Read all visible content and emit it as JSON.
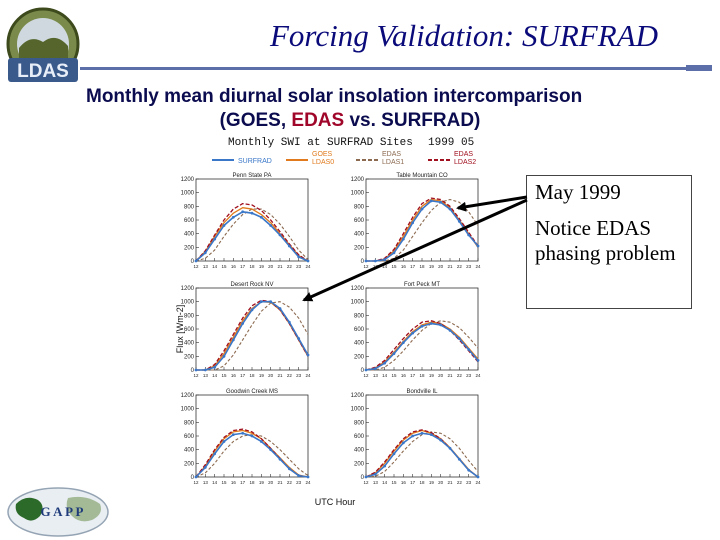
{
  "slide": {
    "title": "Forcing Validation: SURFRAD",
    "subtitle_line1": "Monthly mean diurnal solar insolation intercomparison",
    "subtitle_line2_pre": "(GOES, ",
    "subtitle_line2_edas": "EDAS",
    "subtitle_line2_post": " vs. SURFRAD)"
  },
  "callout": {
    "line1": "May 1999",
    "line2": "Notice EDAS phasing problem"
  },
  "logos": {
    "ldas_text": "LDAS",
    "gapp_text": "G A P P"
  },
  "colors": {
    "title": "#0a0a7a",
    "rule": "#5d6fa8",
    "surfrad": "#3a77c8",
    "goes": "#e07a1c",
    "edas1": "#8c6a50",
    "edas2": "#a0101e"
  },
  "chart_data": {
    "type": "line",
    "title": "Monthly SWI at SURFRAD Sites",
    "date_label": "1999 05",
    "xlabel": "UTC Hour",
    "ylabel": "Flux [Wm-2]",
    "xlim": [
      12,
      24
    ],
    "ylim": [
      0,
      1200
    ],
    "yticks": [
      0,
      200,
      400,
      600,
      800,
      1000,
      1200
    ],
    "yticks_top_left": [
      0,
      200,
      400,
      600,
      800,
      1000,
      1200
    ],
    "ytick_labels_left": [
      "0",
      "200",
      "400",
      "600",
      "800",
      "1000",
      "1200"
    ],
    "ytick_labels_right": [
      "0",
      "200",
      "400",
      "600",
      "800",
      "1000",
      "1200"
    ],
    "xticks": [
      12,
      13,
      14,
      15,
      16,
      17,
      18,
      19,
      20,
      21,
      22,
      23,
      24
    ],
    "legend": [
      {
        "name": "SURFRAD",
        "color": "#3a77c8",
        "style": "solid"
      },
      {
        "name": "GOES LDAS0",
        "color": "#e07a1c",
        "style": "solid"
      },
      {
        "name": "EDAS LDAS1",
        "color": "#8c6a50",
        "style": "dashed"
      },
      {
        "name": "EDAS LDAS2",
        "color": "#a0101e",
        "style": "dashed"
      }
    ],
    "panels": [
      {
        "site": "Penn State PA",
        "x": [
          12,
          13,
          14,
          15,
          16,
          17,
          18,
          19,
          20,
          21,
          22,
          23,
          24
        ],
        "series": {
          "SURFRAD": [
            0,
            120,
            320,
            520,
            640,
            720,
            700,
            640,
            520,
            380,
            220,
            60,
            0
          ],
          "GOES": [
            0,
            140,
            360,
            560,
            700,
            780,
            760,
            680,
            560,
            400,
            240,
            80,
            0
          ],
          "EDAS1": [
            0,
            40,
            160,
            360,
            540,
            680,
            760,
            760,
            680,
            540,
            360,
            160,
            20
          ],
          "EDAS2": [
            0,
            150,
            380,
            600,
            760,
            840,
            820,
            740,
            600,
            430,
            250,
            90,
            0
          ]
        }
      },
      {
        "site": "Table Mountain CO",
        "x": [
          12,
          13,
          14,
          15,
          16,
          17,
          18,
          19,
          20,
          21,
          22,
          23,
          24
        ],
        "series": {
          "SURFRAD": [
            0,
            0,
            20,
            120,
            320,
            560,
            760,
            880,
            860,
            760,
            580,
            380,
            220
          ],
          "GOES": [
            0,
            0,
            30,
            150,
            360,
            600,
            800,
            900,
            880,
            780,
            600,
            400,
            200
          ],
          "EDAS1": [
            0,
            0,
            0,
            40,
            160,
            360,
            560,
            740,
            860,
            900,
            860,
            720,
            520
          ],
          "EDAS2": [
            0,
            0,
            40,
            170,
            400,
            640,
            840,
            920,
            900,
            800,
            620,
            420,
            220
          ]
        }
      },
      {
        "site": "Desert Rock NV",
        "x": [
          12,
          13,
          14,
          15,
          16,
          17,
          18,
          19,
          20,
          21,
          22,
          23,
          24
        ],
        "series": {
          "SURFRAD": [
            0,
            0,
            40,
            200,
            440,
            680,
            880,
            1000,
            1000,
            900,
            700,
            460,
            220
          ],
          "GOES": [
            0,
            0,
            60,
            240,
            480,
            720,
            900,
            1000,
            990,
            880,
            680,
            440,
            200
          ],
          "EDAS1": [
            0,
            0,
            0,
            60,
            220,
            440,
            660,
            860,
            980,
            1000,
            920,
            760,
            520
          ],
          "EDAS2": [
            0,
            0,
            80,
            280,
            520,
            760,
            940,
            1020,
            1000,
            880,
            680,
            440,
            200
          ]
        }
      },
      {
        "site": "Fort Peck MT",
        "x": [
          12,
          13,
          14,
          15,
          16,
          17,
          18,
          19,
          20,
          21,
          22,
          23,
          24
        ],
        "series": {
          "SURFRAD": [
            0,
            20,
            100,
            240,
            400,
            540,
            640,
            680,
            660,
            580,
            460,
            300,
            140
          ],
          "GOES": [
            0,
            30,
            120,
            260,
            420,
            560,
            660,
            700,
            680,
            600,
            480,
            320,
            160
          ],
          "EDAS1": [
            0,
            0,
            40,
            140,
            280,
            440,
            580,
            680,
            720,
            700,
            620,
            480,
            320
          ],
          "EDAS2": [
            0,
            40,
            140,
            300,
            460,
            600,
            700,
            720,
            680,
            580,
            440,
            280,
            120
          ]
        }
      },
      {
        "site": "Goodwin Creek MS",
        "x": [
          12,
          13,
          14,
          15,
          16,
          17,
          18,
          19,
          20,
          21,
          22,
          23,
          24
        ],
        "series": {
          "SURFRAD": [
            0,
            140,
            340,
            520,
            620,
            640,
            600,
            520,
            400,
            260,
            120,
            20,
            0
          ],
          "GOES": [
            0,
            160,
            380,
            560,
            660,
            680,
            640,
            560,
            420,
            280,
            140,
            30,
            0
          ],
          "EDAS1": [
            0,
            60,
            200,
            380,
            520,
            600,
            620,
            600,
            520,
            400,
            260,
            120,
            20
          ],
          "EDAS2": [
            0,
            180,
            400,
            580,
            680,
            700,
            660,
            560,
            420,
            270,
            120,
            20,
            0
          ]
        }
      },
      {
        "site": "Bondville IL",
        "x": [
          12,
          13,
          14,
          15,
          16,
          17,
          18,
          19,
          20,
          21,
          22,
          23,
          24
        ],
        "series": {
          "SURFRAD": [
            0,
            40,
            160,
            340,
            500,
            600,
            640,
            620,
            540,
            420,
            260,
            100,
            0
          ],
          "GOES": [
            0,
            60,
            200,
            380,
            540,
            640,
            680,
            640,
            560,
            430,
            270,
            110,
            0
          ],
          "EDAS1": [
            0,
            10,
            80,
            220,
            380,
            520,
            620,
            660,
            640,
            560,
            420,
            240,
            80
          ],
          "EDAS2": [
            0,
            70,
            220,
            400,
            560,
            660,
            690,
            650,
            560,
            420,
            260,
            100,
            0
          ]
        }
      }
    ]
  }
}
